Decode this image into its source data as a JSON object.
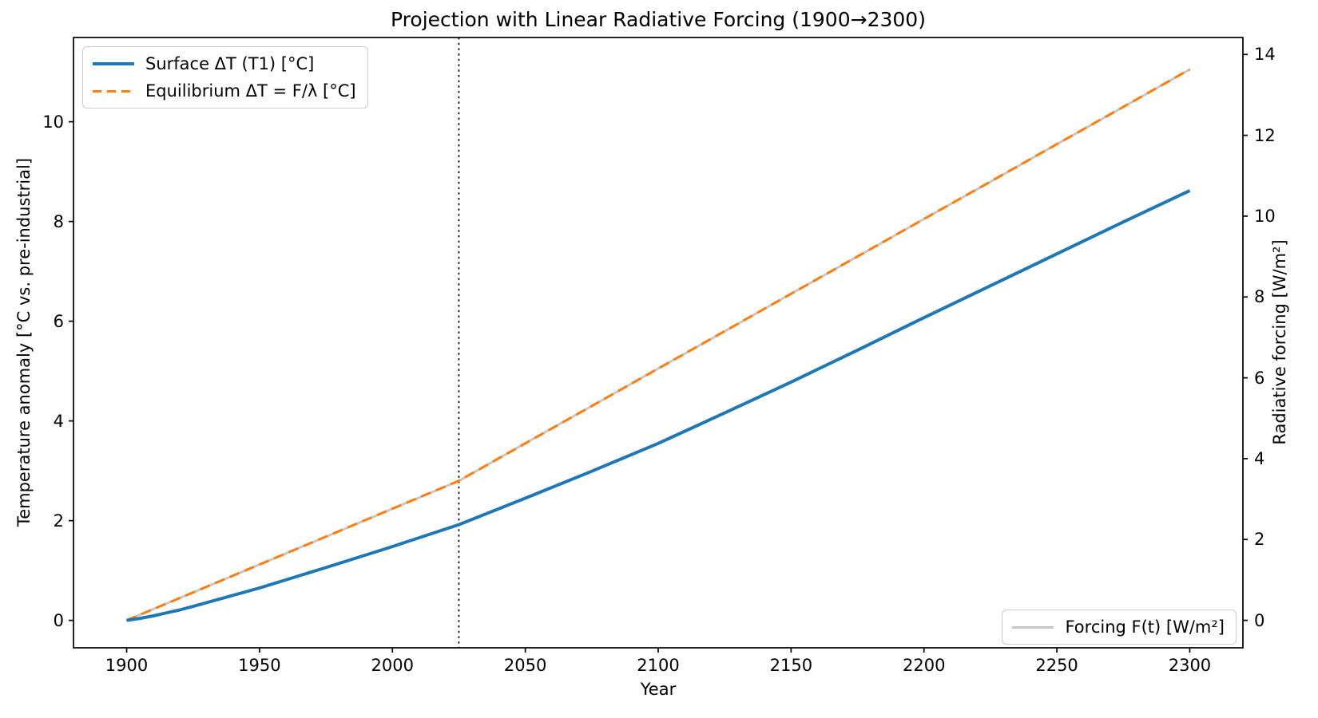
{
  "figure": {
    "title": "Projection with Linear Radiative Forcing (1900→2300)",
    "xlabel": "Year",
    "ylabel_left": "Temperature anomaly [°C vs. pre-industrial]",
    "ylabel_right": "Radiative forcing [W/m²]"
  },
  "legend_top": {
    "entries": [
      {
        "label": "Surface ΔT (T1) [°C]",
        "color": "#1f77b4",
        "style": "solid"
      },
      {
        "label": "Equilibrium ΔT = F/λ [°C]",
        "color": "#ff7f0e",
        "style": "dashed"
      }
    ]
  },
  "legend_bottom": {
    "entries": [
      {
        "label": "Forcing F(t) [W/m²]",
        "color": "#c7c7c7",
        "style": "solid"
      }
    ]
  },
  "chart_data": {
    "type": "line",
    "title": "Projection with Linear Radiative Forcing (1900→2300)",
    "xlabel": "Year",
    "ylabel_left": "Temperature anomaly [°C vs. pre-industrial]",
    "ylabel_right": "Radiative forcing [W/m²]",
    "xlim": [
      1880,
      2320
    ],
    "ylim_left": [
      -0.55,
      11.69
    ],
    "ylim_right": [
      -0.68,
      14.42
    ],
    "xticks": [
      1900,
      1950,
      2000,
      2050,
      2100,
      2150,
      2200,
      2250,
      2300
    ],
    "yticks_left": [
      0,
      2,
      4,
      6,
      8,
      10
    ],
    "yticks_right": [
      0,
      2,
      4,
      6,
      8,
      10,
      12,
      14
    ],
    "grid": false,
    "legend_positions": [
      "upper left",
      "lower right"
    ],
    "vline": {
      "x": 2025,
      "style": "dotted",
      "color": "#000000"
    },
    "series": [
      {
        "name": "Forcing F(t) [W/m²]",
        "axis": "right",
        "color": "#c7c7c7",
        "style": "solid",
        "width": 3,
        "x": [
          1900,
          1925,
          1950,
          1975,
          2000,
          2025,
          2050,
          2075,
          2100,
          2125,
          2150,
          2175,
          2200,
          2225,
          2250,
          2275,
          2300
        ],
        "y": [
          0.0,
          0.69,
          1.38,
          2.07,
          2.76,
          3.45,
          4.38,
          5.3,
          6.23,
          7.15,
          8.08,
          9.0,
          9.93,
          10.85,
          11.78,
          12.7,
          13.63
        ]
      },
      {
        "name": "Equilibrium ΔT = F/λ [°C]",
        "axis": "left",
        "color": "#ff7f0e",
        "style": "dashed",
        "width": 3,
        "x": [
          1900,
          1925,
          1950,
          1975,
          2000,
          2025,
          2050,
          2075,
          2100,
          2125,
          2150,
          2175,
          2200,
          2225,
          2250,
          2275,
          2300
        ],
        "y": [
          0.0,
          0.56,
          1.12,
          1.68,
          2.24,
          2.8,
          3.55,
          4.3,
          5.05,
          5.8,
          6.55,
          7.3,
          8.05,
          8.8,
          9.55,
          10.3,
          11.05
        ]
      },
      {
        "name": "Surface ΔT (T1) [°C]",
        "axis": "left",
        "color": "#1f77b4",
        "style": "solid",
        "width": 4,
        "x": [
          1900,
          1905,
          1910,
          1915,
          1920,
          1925,
          1950,
          1975,
          2000,
          2025,
          2050,
          2075,
          2100,
          2125,
          2150,
          2175,
          2200,
          2225,
          2250,
          2275,
          2300
        ],
        "y": [
          0.0,
          0.04,
          0.09,
          0.15,
          0.21,
          0.28,
          0.65,
          1.06,
          1.48,
          1.92,
          2.45,
          2.99,
          3.55,
          4.16,
          4.78,
          5.42,
          6.07,
          6.71,
          7.35,
          7.99,
          8.62
        ]
      }
    ]
  }
}
